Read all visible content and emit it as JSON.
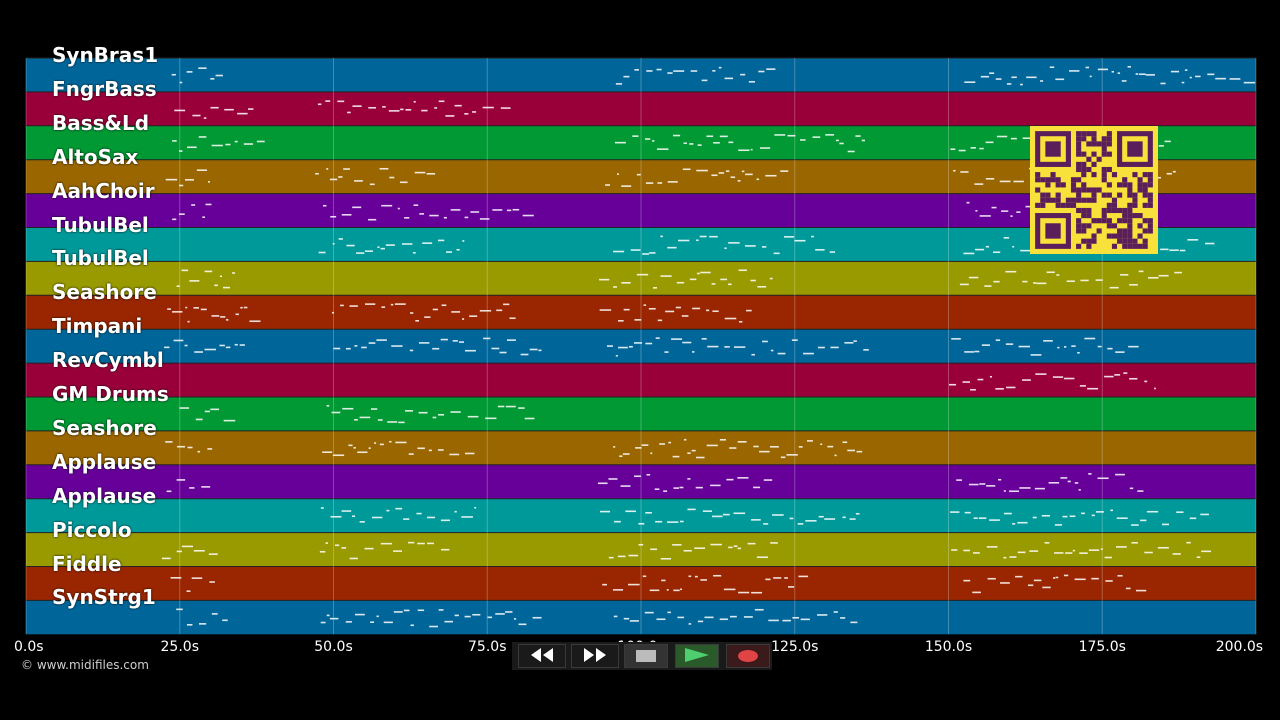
{
  "tracks": [
    {
      "name": "SynBras1",
      "color": "#006699"
    },
    {
      "name": "FngrBass",
      "color": "#99003a"
    },
    {
      "name": "Bass&Ld",
      "color": "#009933"
    },
    {
      "name": "AltoSax",
      "color": "#996600"
    },
    {
      "name": "AahChoir",
      "color": "#660099"
    },
    {
      "name": "TubulBel",
      "color": "#009999"
    },
    {
      "name": "TubulBel",
      "color": "#999900"
    },
    {
      "name": "Seashore",
      "color": "#992600"
    },
    {
      "name": "Timpani",
      "color": "#006699"
    },
    {
      "name": "RevCymbl",
      "color": "#99003a"
    },
    {
      "name": "GM Drums",
      "color": "#009933"
    },
    {
      "name": "Seashore",
      "color": "#996600"
    },
    {
      "name": "Applause",
      "color": "#660099"
    },
    {
      "name": "Applause",
      "color": "#009999"
    },
    {
      "name": "Piccolo",
      "color": "#999900"
    },
    {
      "name": "Fiddle",
      "color": "#992600"
    },
    {
      "name": "SynStrg1",
      "color": "#006699"
    }
  ],
  "timeline": {
    "ticks": [
      "0.0s",
      "25.0s",
      "50.0s",
      "75.0s",
      "100.0s",
      "125.0s",
      "150.0s",
      "175.0s",
      "200.0s"
    ],
    "tick_values": [
      0,
      25,
      50,
      75,
      100,
      125,
      150,
      175,
      200
    ],
    "duration": 200
  },
  "copyright": "© www.midifiles.com",
  "controls": {
    "rewind_icon": "rewind-icon",
    "forward_icon": "fast-forward-icon",
    "stop_icon": "stop-icon",
    "play_icon": "play-icon",
    "record_icon": "record-icon",
    "play_color": "#2fa84f",
    "record_color": "#d23a3a"
  },
  "qr_code": {
    "color": "#f7e13a",
    "dark": "#5a1f5a"
  }
}
